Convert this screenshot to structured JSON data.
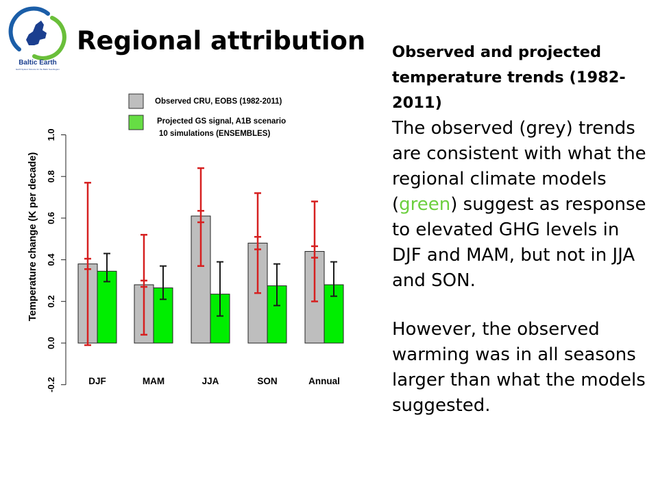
{
  "slide": {
    "title": "Regional attribution",
    "logo": {
      "name": "Baltic Earth",
      "tagline": "Earth System Science for the Baltic Sea Region",
      "colors": {
        "ring_blue": "#1b5ea8",
        "ring_green": "#6abf3a",
        "map_blue": "#1b3f8f"
      }
    }
  },
  "text": {
    "heading": "Observed and projected temperature trends (1982-2011)",
    "p1_before": "The observed (grey) trends are consistent with what the regional climate models (",
    "p1_green": "green",
    "p1_after": ") suggest as response to elevated GHG levels in DJF and MAM, but not in JJA and SON.",
    "p2": "However, the observed warming was in all seasons larger than what the models suggested.",
    "green_color": "#6ccf3e"
  },
  "chart_data": {
    "type": "bar",
    "title": "",
    "xlabel": "",
    "ylabel": "Temperature change (K per decade)",
    "ylim": [
      -0.2,
      1.0
    ],
    "yticks": [
      "1.0",
      "0.8",
      "0.6",
      "0.4",
      "0.2",
      "0.0",
      "-0.2"
    ],
    "yticks_values": [
      1.0,
      0.8,
      0.6,
      0.4,
      0.2,
      0.0,
      -0.2
    ],
    "categories": [
      "DJF",
      "MAM",
      "JJA",
      "SON",
      "Annual"
    ],
    "grid": false,
    "legend": {
      "placement": "top",
      "entries": [
        {
          "label": "Observed CRU, EOBS (1982-2011)",
          "color": "#bebebe"
        },
        {
          "label_lines": [
            "Projected GS signal, A1B scenario",
            "10 simulations (ENSEMBLES)"
          ],
          "color": "#66dd44"
        }
      ]
    },
    "series": [
      {
        "name": "Observed CRU, EOBS (1982-2011)",
        "color": "#bebebe",
        "values": [
          0.38,
          0.28,
          0.61,
          0.48,
          0.44
        ],
        "error_low": [
          -0.01,
          0.04,
          0.37,
          0.24,
          0.2
        ],
        "error_high": [
          0.77,
          0.52,
          0.84,
          0.72,
          0.68
        ],
        "error_mid_ticks": [
          [
            0.355,
            0.405
          ],
          [
            0.27,
            0.3
          ],
          [
            0.58,
            0.635
          ],
          [
            0.45,
            0.51
          ],
          [
            0.41,
            0.465
          ]
        ],
        "error_color": "#d62020"
      },
      {
        "name": "Projected GS signal, A1B scenario",
        "color": "#00ee00",
        "values": [
          0.345,
          0.265,
          0.235,
          0.275,
          0.28
        ],
        "error_low": [
          0.295,
          0.21,
          0.13,
          0.18,
          0.225
        ],
        "error_high": [
          0.43,
          0.37,
          0.39,
          0.38,
          0.39
        ],
        "error_color": "#1a1a1a"
      }
    ]
  }
}
